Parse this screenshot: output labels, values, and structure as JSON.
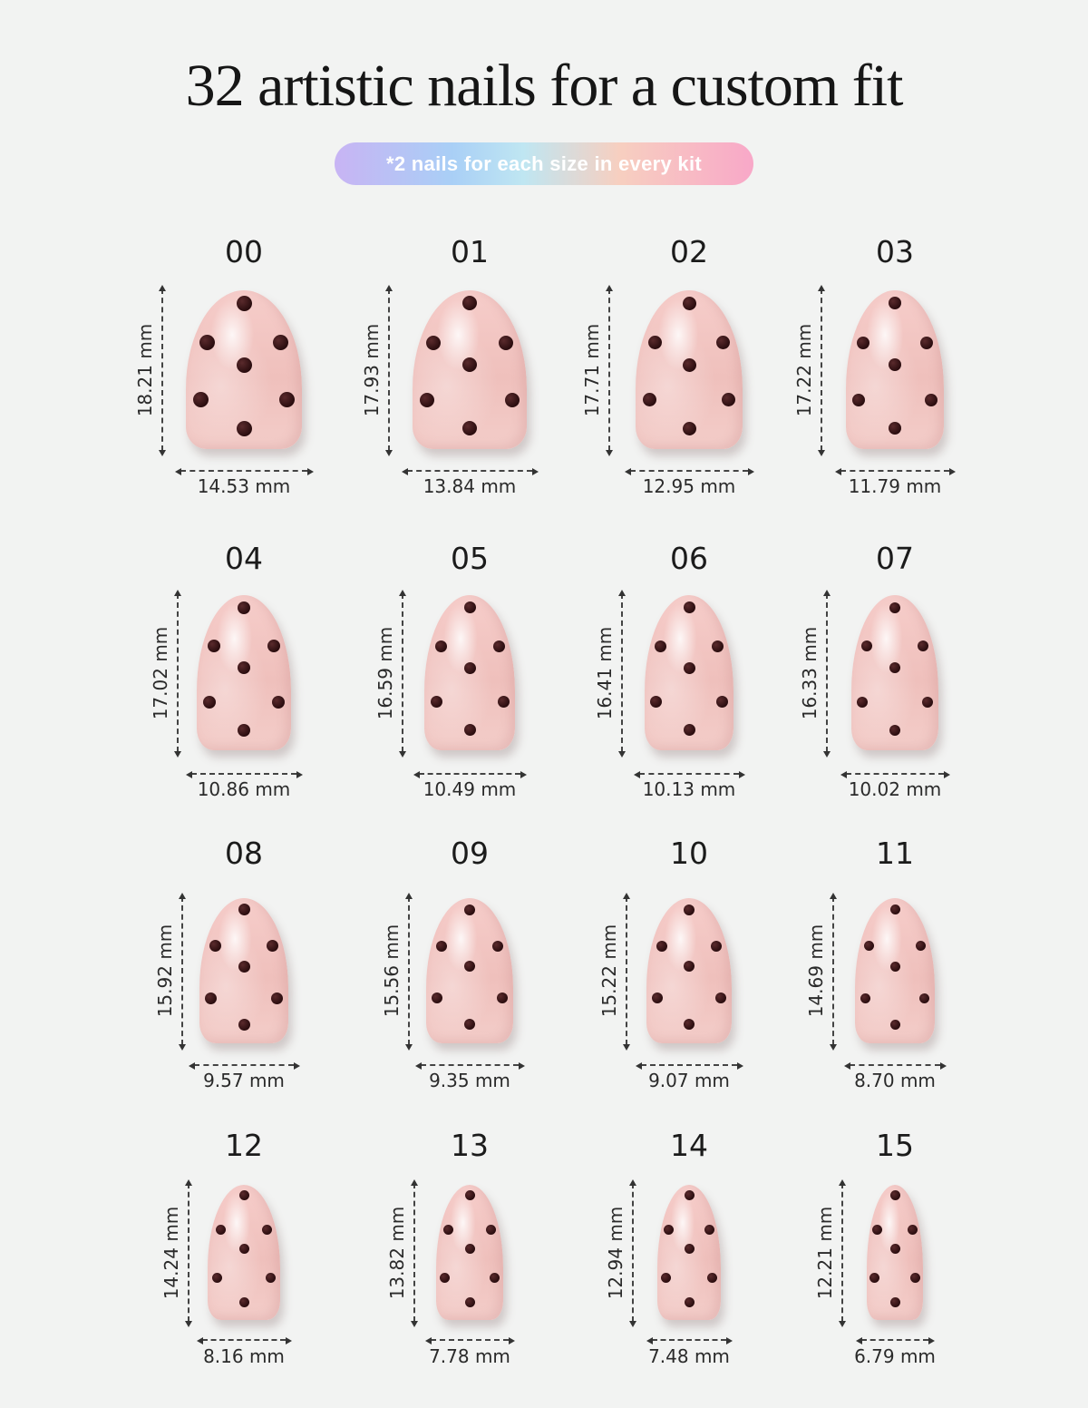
{
  "title": "32 artistic nails for a custom fit",
  "subtitle_pill": "*2 nails for each size in every kit",
  "nails": [
    {
      "size": "00",
      "length": "18.21 mm",
      "width": "14.53 mm"
    },
    {
      "size": "01",
      "length": "17.93 mm",
      "width": "13.84 mm"
    },
    {
      "size": "02",
      "length": "17.71 mm",
      "width": "12.95 mm"
    },
    {
      "size": "03",
      "length": "17.22 mm",
      "width": "11.79 mm"
    },
    {
      "size": "04",
      "length": "17.02 mm",
      "width": "10.86 mm"
    },
    {
      "size": "05",
      "length": "16.59 mm",
      "width": "10.49 mm"
    },
    {
      "size": "06",
      "length": "16.41 mm",
      "width": "10.13 mm"
    },
    {
      "size": "07",
      "length": "16.33 mm",
      "width": "10.02 mm"
    },
    {
      "size": "08",
      "length": "15.92 mm",
      "width": "9.57 mm"
    },
    {
      "size": "09",
      "length": "15.56 mm",
      "width": "9.35 mm"
    },
    {
      "size": "10",
      "length": "15.22 mm",
      "width": "9.07 mm"
    },
    {
      "size": "11",
      "length": "14.69 mm",
      "width": "8.70 mm"
    },
    {
      "size": "12",
      "length": "14.24 mm",
      "width": "8.16 mm"
    },
    {
      "size": "13",
      "length": "13.82 mm",
      "width": "7.78 mm"
    },
    {
      "size": "14",
      "length": "12.94 mm",
      "width": "7.48 mm"
    },
    {
      "size": "15",
      "length": "12.21 mm",
      "width": "6.79 mm"
    }
  ],
  "colors": {
    "nail_base": "#f3c9c5",
    "dot": "#2a0d0f",
    "background": "#f2f3f2"
  }
}
